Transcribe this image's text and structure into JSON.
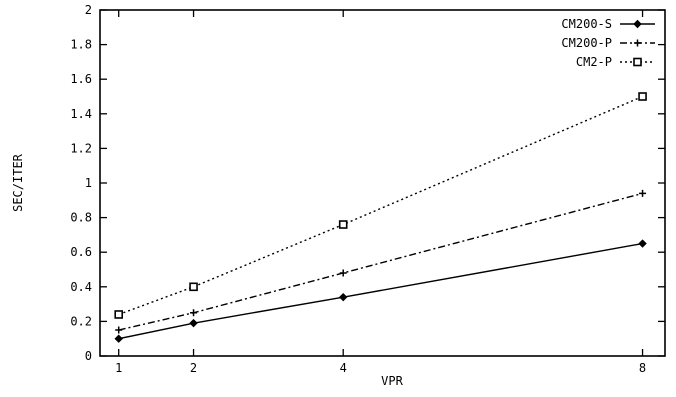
{
  "chart_data": {
    "type": "line",
    "title": "",
    "xlabel": "VPR",
    "ylabel": "SEC/ITER",
    "x": [
      1,
      2,
      4,
      8
    ],
    "xticks": [
      "1",
      "2",
      "4",
      "8"
    ],
    "xlim": [
      0.75,
      8.3
    ],
    "ylim": [
      0,
      2
    ],
    "yticks": [
      "0",
      "0.2",
      "0.4",
      "0.6",
      "0.8",
      "1",
      "1.2",
      "1.4",
      "1.6",
      "1.8",
      "2"
    ],
    "grid": false,
    "legend_position": "top-right",
    "series": [
      {
        "name": "CM200-S",
        "values": [
          0.1,
          0.19,
          0.34,
          0.65
        ],
        "marker": "diamond",
        "dash": "solid",
        "color": "#000000"
      },
      {
        "name": "CM200-P",
        "values": [
          0.15,
          0.25,
          0.48,
          0.94
        ],
        "marker": "plus",
        "dash": "dashdot",
        "color": "#000000"
      },
      {
        "name": "CM2-P",
        "values": [
          0.24,
          0.4,
          0.76,
          1.5
        ],
        "marker": "square",
        "dash": "dotted",
        "color": "#000000"
      }
    ]
  }
}
